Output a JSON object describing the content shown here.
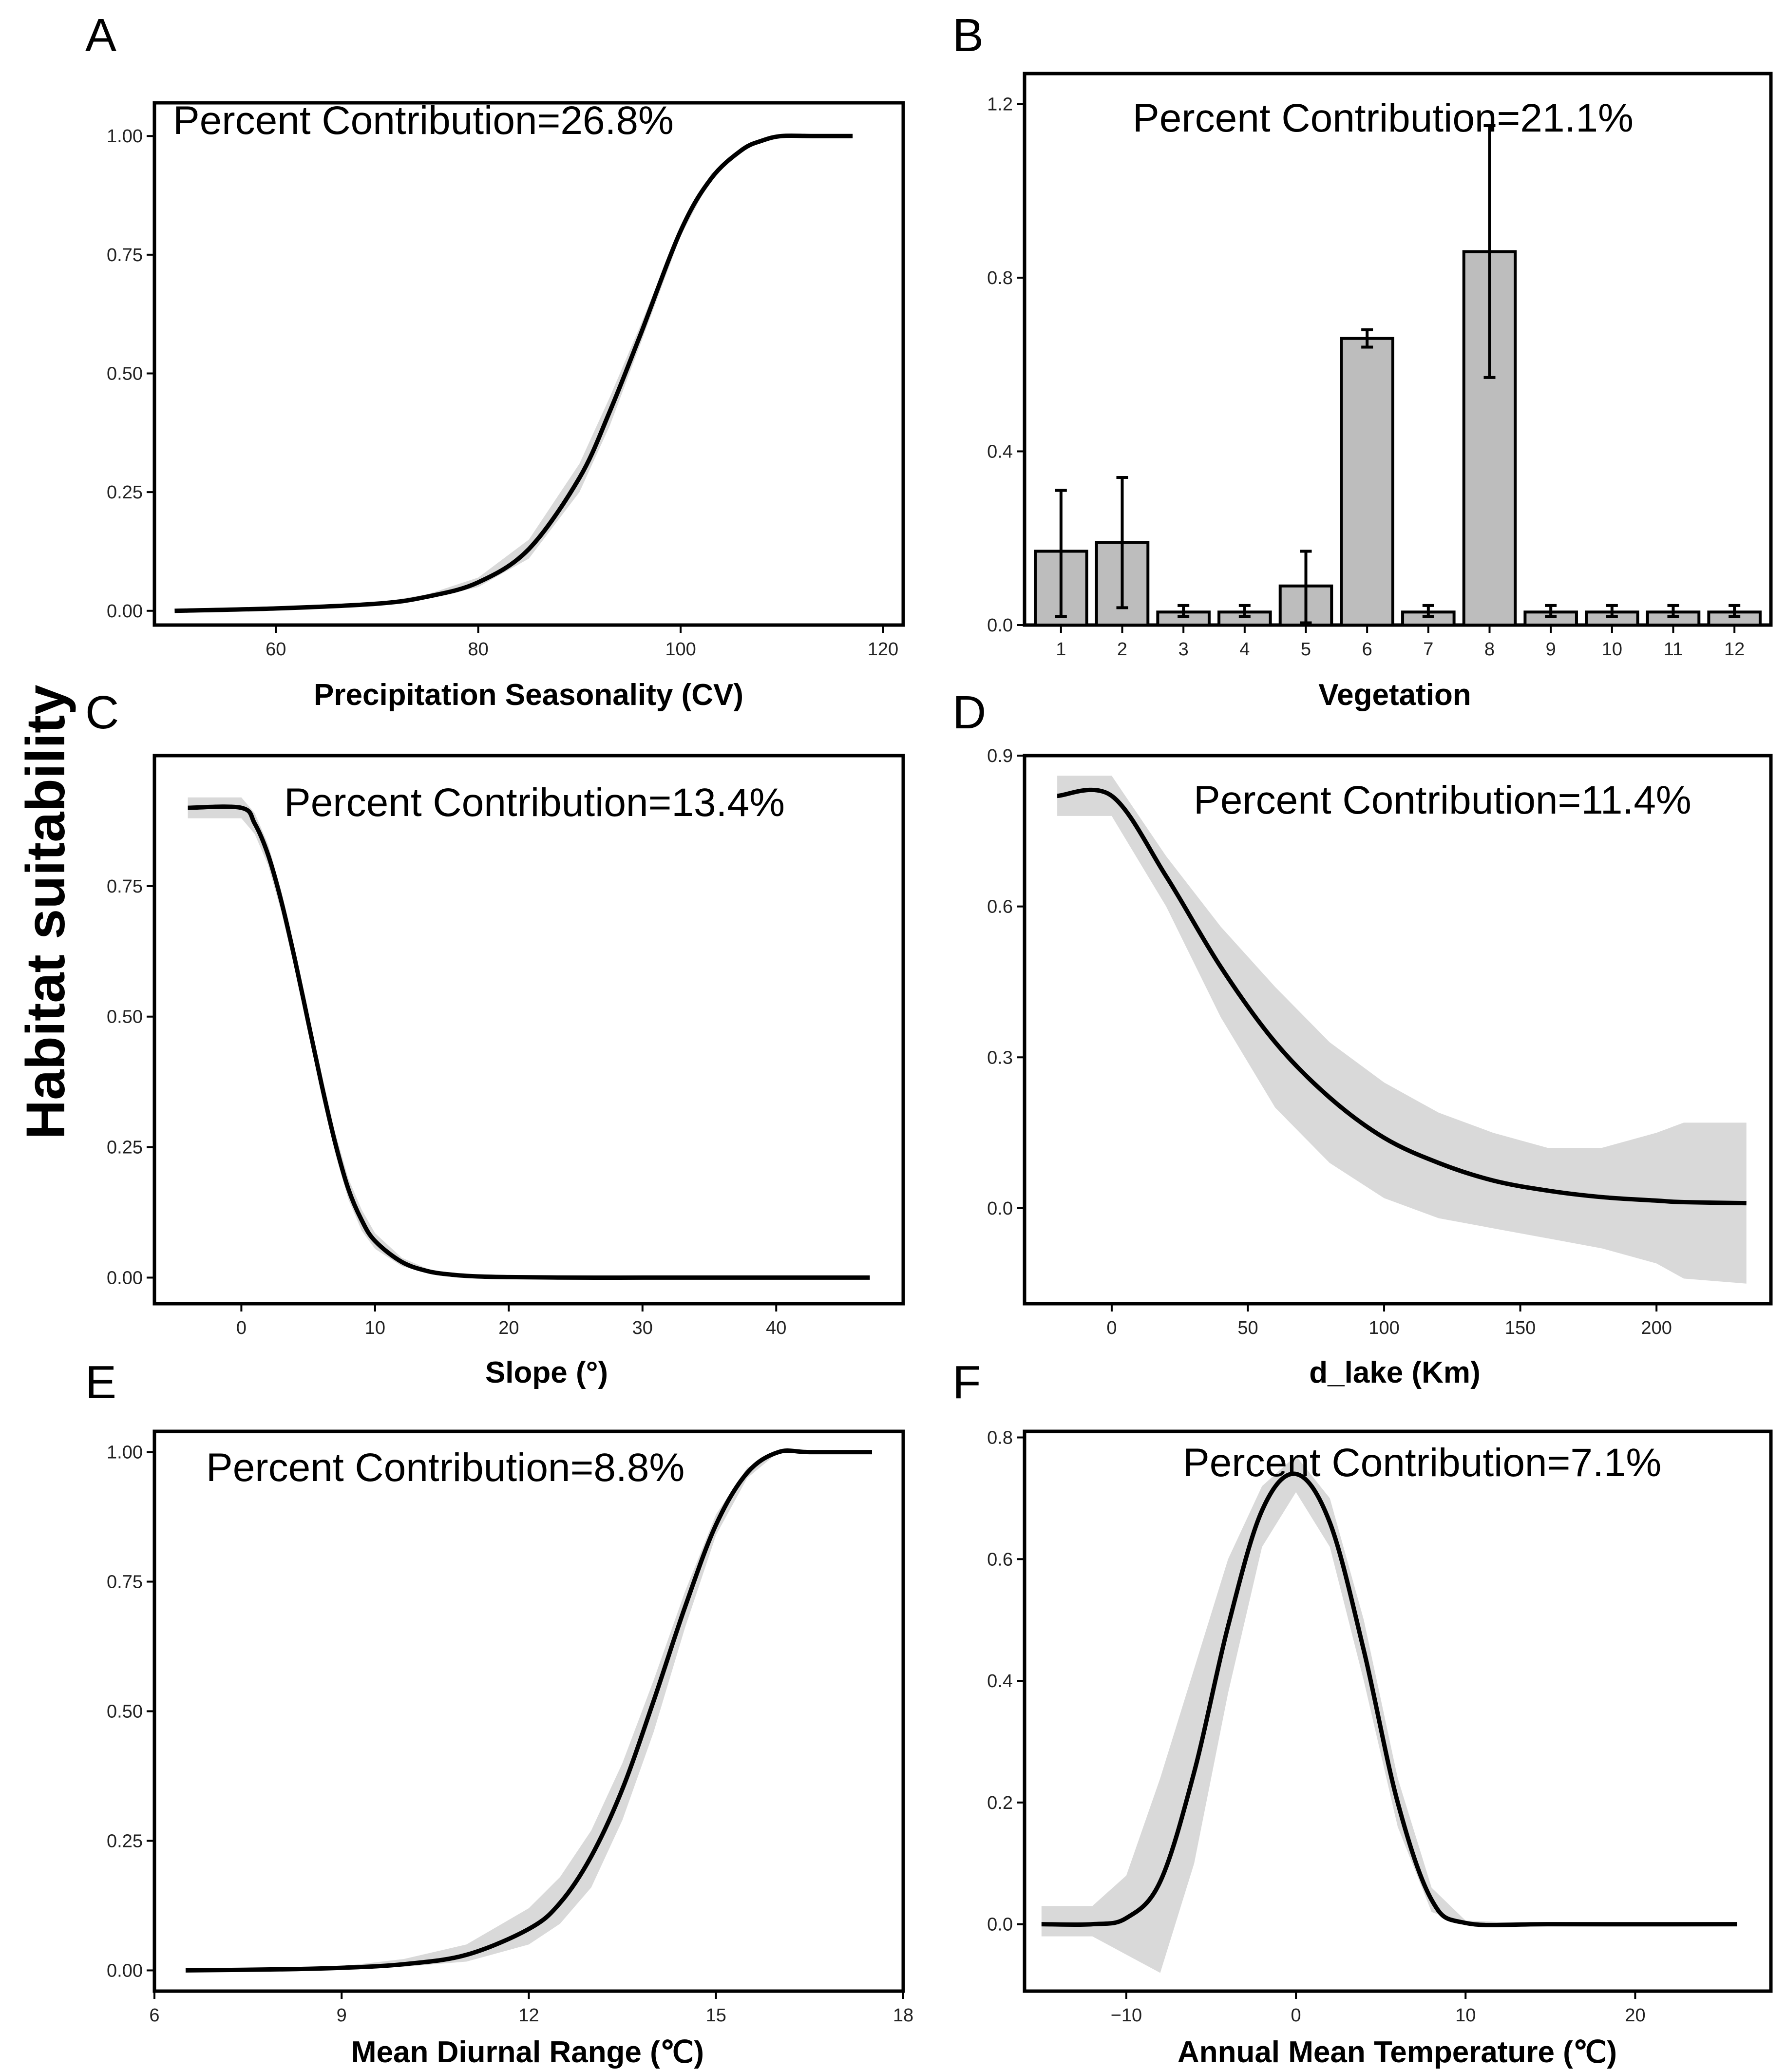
{
  "figure": {
    "ylabel": "Habitat suitability"
  },
  "chart_data": [
    {
      "id": "A",
      "panel_label": "A",
      "type": "line",
      "xlabel": "Precipitation Seasonality (CV)",
      "annotation": "Percent Contribution=26.8%",
      "xlim": [
        48,
        122
      ],
      "ylim": [
        -0.03,
        1.07
      ],
      "xticks": [
        60,
        80,
        100,
        120
      ],
      "yticks": [
        0.0,
        0.25,
        0.5,
        0.75,
        1.0
      ],
      "ytick_labels": [
        "0.00",
        "0.25",
        "0.50",
        "0.75",
        "1.00"
      ],
      "x": [
        50,
        60,
        70,
        75,
        80,
        85,
        90,
        93,
        96,
        100,
        103,
        106,
        108,
        110,
        113,
        117
      ],
      "y": [
        0.0,
        0.005,
        0.015,
        0.03,
        0.06,
        0.13,
        0.28,
        0.42,
        0.58,
        0.8,
        0.91,
        0.97,
        0.99,
        1.0,
        1.0,
        1.0
      ],
      "lower": [
        0.0,
        0.005,
        0.013,
        0.025,
        0.05,
        0.11,
        0.25,
        0.39,
        0.56,
        0.79,
        0.91,
        0.97,
        0.99,
        1.0,
        1.0,
        1.0
      ],
      "upper": [
        0.0,
        0.006,
        0.017,
        0.035,
        0.07,
        0.15,
        0.31,
        0.45,
        0.6,
        0.81,
        0.92,
        0.975,
        0.995,
        1.0,
        1.0,
        1.0
      ]
    },
    {
      "id": "B",
      "panel_label": "B",
      "type": "bar",
      "xlabel": "Vegetation",
      "annotation": "Percent Contribution=21.1%",
      "categories": [
        "1",
        "2",
        "3",
        "4",
        "5",
        "6",
        "7",
        "8",
        "9",
        "10",
        "11",
        "12"
      ],
      "values": [
        0.17,
        0.19,
        0.03,
        0.03,
        0.09,
        0.66,
        0.03,
        0.86,
        0.03,
        0.03,
        0.03,
        0.03
      ],
      "err_low": [
        0.02,
        0.04,
        0.02,
        0.02,
        0.005,
        0.64,
        0.02,
        0.57,
        0.02,
        0.02,
        0.02,
        0.02
      ],
      "err_high": [
        0.31,
        0.34,
        0.045,
        0.045,
        0.17,
        0.68,
        0.045,
        1.15,
        0.045,
        0.045,
        0.045,
        0.045
      ],
      "ylim": [
        0,
        1.27
      ],
      "yticks": [
        0.0,
        0.4,
        0.8,
        1.2
      ],
      "ytick_labels": [
        "0.0",
        "0.4",
        "0.8",
        "1.2"
      ]
    },
    {
      "id": "C",
      "panel_label": "C",
      "type": "line",
      "xlabel": "Slope (°)",
      "annotation": "Percent Contribution=13.4%",
      "xlim": [
        -6.5,
        49.5
      ],
      "ylim": [
        -0.05,
        1.0
      ],
      "xticks": [
        0,
        10,
        20,
        30,
        40
      ],
      "yticks": [
        0.0,
        0.25,
        0.5,
        0.75
      ],
      "ytick_labels": [
        "0.00",
        "0.25",
        "0.50",
        "0.75"
      ],
      "x": [
        -4,
        0,
        1,
        2,
        3,
        4,
        5,
        6,
        7,
        8,
        9,
        10,
        12,
        14,
        16,
        18,
        20,
        25,
        30,
        40,
        47
      ],
      "y": [
        0.9,
        0.9,
        0.87,
        0.81,
        0.72,
        0.61,
        0.49,
        0.37,
        0.26,
        0.17,
        0.11,
        0.07,
        0.03,
        0.012,
        0.005,
        0.002,
        0.001,
        0.0,
        0.0,
        0.0,
        0.0
      ],
      "lower": [
        0.88,
        0.88,
        0.85,
        0.79,
        0.7,
        0.59,
        0.47,
        0.35,
        0.24,
        0.15,
        0.09,
        0.055,
        0.022,
        0.008,
        0.003,
        0.001,
        0.0,
        0.0,
        0.0,
        0.0,
        0.0
      ],
      "upper": [
        0.92,
        0.92,
        0.89,
        0.83,
        0.74,
        0.63,
        0.51,
        0.39,
        0.28,
        0.19,
        0.13,
        0.085,
        0.038,
        0.016,
        0.007,
        0.003,
        0.002,
        0.0,
        0.0,
        0.0,
        0.0
      ]
    },
    {
      "id": "D",
      "panel_label": "D",
      "type": "line",
      "xlabel": "d_lake (Km)",
      "annotation": "Percent Contribution=11.4%",
      "xlim": [
        -32,
        242
      ],
      "ylim": [
        -0.19,
        0.9
      ],
      "xticks": [
        0,
        50,
        100,
        150,
        200
      ],
      "yticks": [
        0.0,
        0.3,
        0.6,
        0.9
      ],
      "ytick_labels": [
        "0.0",
        "0.3",
        "0.6",
        "0.9"
      ],
      "x": [
        -20,
        0,
        20,
        40,
        60,
        80,
        100,
        120,
        140,
        160,
        180,
        200,
        210,
        233
      ],
      "y": [
        0.82,
        0.82,
        0.66,
        0.48,
        0.33,
        0.22,
        0.14,
        0.09,
        0.055,
        0.035,
        0.022,
        0.015,
        0.012,
        0.01
      ],
      "lower": [
        0.78,
        0.78,
        0.6,
        0.38,
        0.2,
        0.09,
        0.02,
        -0.02,
        -0.04,
        -0.06,
        -0.08,
        -0.11,
        -0.14,
        -0.15
      ],
      "upper": [
        0.86,
        0.86,
        0.7,
        0.56,
        0.44,
        0.33,
        0.25,
        0.19,
        0.15,
        0.12,
        0.12,
        0.15,
        0.17,
        0.17
      ]
    },
    {
      "id": "E",
      "panel_label": "E",
      "type": "line",
      "xlabel": "Mean Diurnal Range (℃)",
      "annotation": "Percent Contribution=8.8%",
      "xlim": [
        6.0,
        18.0
      ],
      "ylim": [
        -0.04,
        1.04
      ],
      "xticks": [
        6,
        9,
        12,
        15,
        18
      ],
      "yticks": [
        0.0,
        0.25,
        0.5,
        0.75,
        1.0
      ],
      "ytick_labels": [
        "0.00",
        "0.25",
        "0.50",
        "0.75",
        "1.00"
      ],
      "x": [
        6.5,
        8,
        9,
        10,
        11,
        12,
        12.5,
        13,
        13.5,
        14,
        14.5,
        15,
        15.5,
        16,
        16.5,
        17.5
      ],
      "y": [
        0.0,
        0.002,
        0.005,
        0.012,
        0.03,
        0.08,
        0.13,
        0.22,
        0.35,
        0.52,
        0.7,
        0.86,
        0.96,
        1.0,
        1.0,
        1.0
      ],
      "lower": [
        0.0,
        0.001,
        0.003,
        0.007,
        0.017,
        0.05,
        0.09,
        0.16,
        0.29,
        0.46,
        0.66,
        0.84,
        0.95,
        1.0,
        1.0,
        1.0
      ],
      "upper": [
        0.0,
        0.003,
        0.008,
        0.022,
        0.05,
        0.12,
        0.18,
        0.27,
        0.4,
        0.56,
        0.73,
        0.88,
        0.97,
        1.0,
        1.0,
        1.0
      ]
    },
    {
      "id": "F",
      "panel_label": "F",
      "type": "line",
      "xlabel": "Annual Mean Temperature (℃)",
      "annotation": "Percent Contribution=7.1%",
      "xlim": [
        -16,
        28
      ],
      "ylim": [
        -0.11,
        0.81
      ],
      "xticks": [
        -10,
        0,
        10,
        20
      ],
      "yticks": [
        0.0,
        0.2,
        0.4,
        0.6,
        0.8
      ],
      "ytick_labels": [
        "0.0",
        "0.2",
        "0.4",
        "0.6",
        "0.8"
      ],
      "x": [
        -15,
        -12,
        -10,
        -8,
        -6,
        -4,
        -2,
        0,
        2,
        4,
        6,
        8,
        10,
        15,
        26
      ],
      "y": [
        0.0,
        0.0,
        0.01,
        0.07,
        0.25,
        0.49,
        0.68,
        0.74,
        0.66,
        0.45,
        0.2,
        0.04,
        0.002,
        0.0,
        0.0
      ],
      "lower": [
        -0.02,
        -0.02,
        -0.05,
        -0.08,
        0.1,
        0.38,
        0.62,
        0.71,
        0.62,
        0.4,
        0.16,
        0.02,
        0.0,
        0.0,
        0.0
      ],
      "upper": [
        0.03,
        0.03,
        0.08,
        0.24,
        0.42,
        0.6,
        0.72,
        0.77,
        0.7,
        0.5,
        0.24,
        0.06,
        0.006,
        0.0,
        0.0
      ]
    }
  ]
}
